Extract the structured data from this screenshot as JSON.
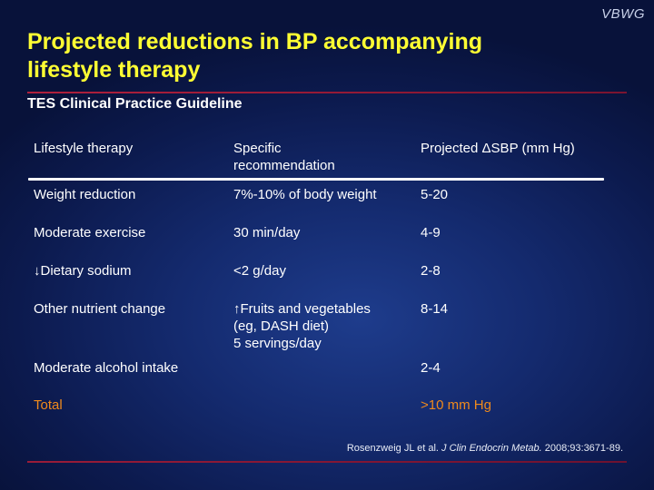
{
  "brand": "VBWG",
  "title_line1": "Projected reductions in BP accompanying",
  "title_line2": "lifestyle therapy",
  "subtitle": "TES Clinical Practice Guideline",
  "table": {
    "headers": {
      "col1": "Lifestyle therapy",
      "col2_line1": "Specific",
      "col2_line2": "recommendation",
      "col3": "Projected ΔSBP (mm Hg)"
    },
    "rows": [
      {
        "therapy": "Weight reduction",
        "rec": [
          "7%-10% of body weight"
        ],
        "sbp": "5-20"
      },
      {
        "therapy": "Moderate exercise",
        "rec": [
          "30 min/day"
        ],
        "sbp": "4-9"
      },
      {
        "therapy": "↓Dietary sodium",
        "rec": [
          "<2 g/day"
        ],
        "sbp": "2-8"
      },
      {
        "therapy": "Other nutrient change",
        "rec": [
          "↑Fruits and vegetables",
          "(eg, DASH diet)",
          "5 servings/day"
        ],
        "sbp": "8-14"
      },
      {
        "therapy": "Moderate alcohol intake",
        "rec": [
          ""
        ],
        "sbp": "2-4"
      }
    ],
    "total": {
      "label": "Total",
      "value": ">10 mm Hg"
    }
  },
  "citation": {
    "authors": "Rosenzweig JL et al.",
    "journal": "J Clin Endocrin Metab.",
    "details": "2008;93:3671-89."
  },
  "colors": {
    "title": "#ffff33",
    "total": "#f08a1c",
    "rule": "#b0203c"
  }
}
